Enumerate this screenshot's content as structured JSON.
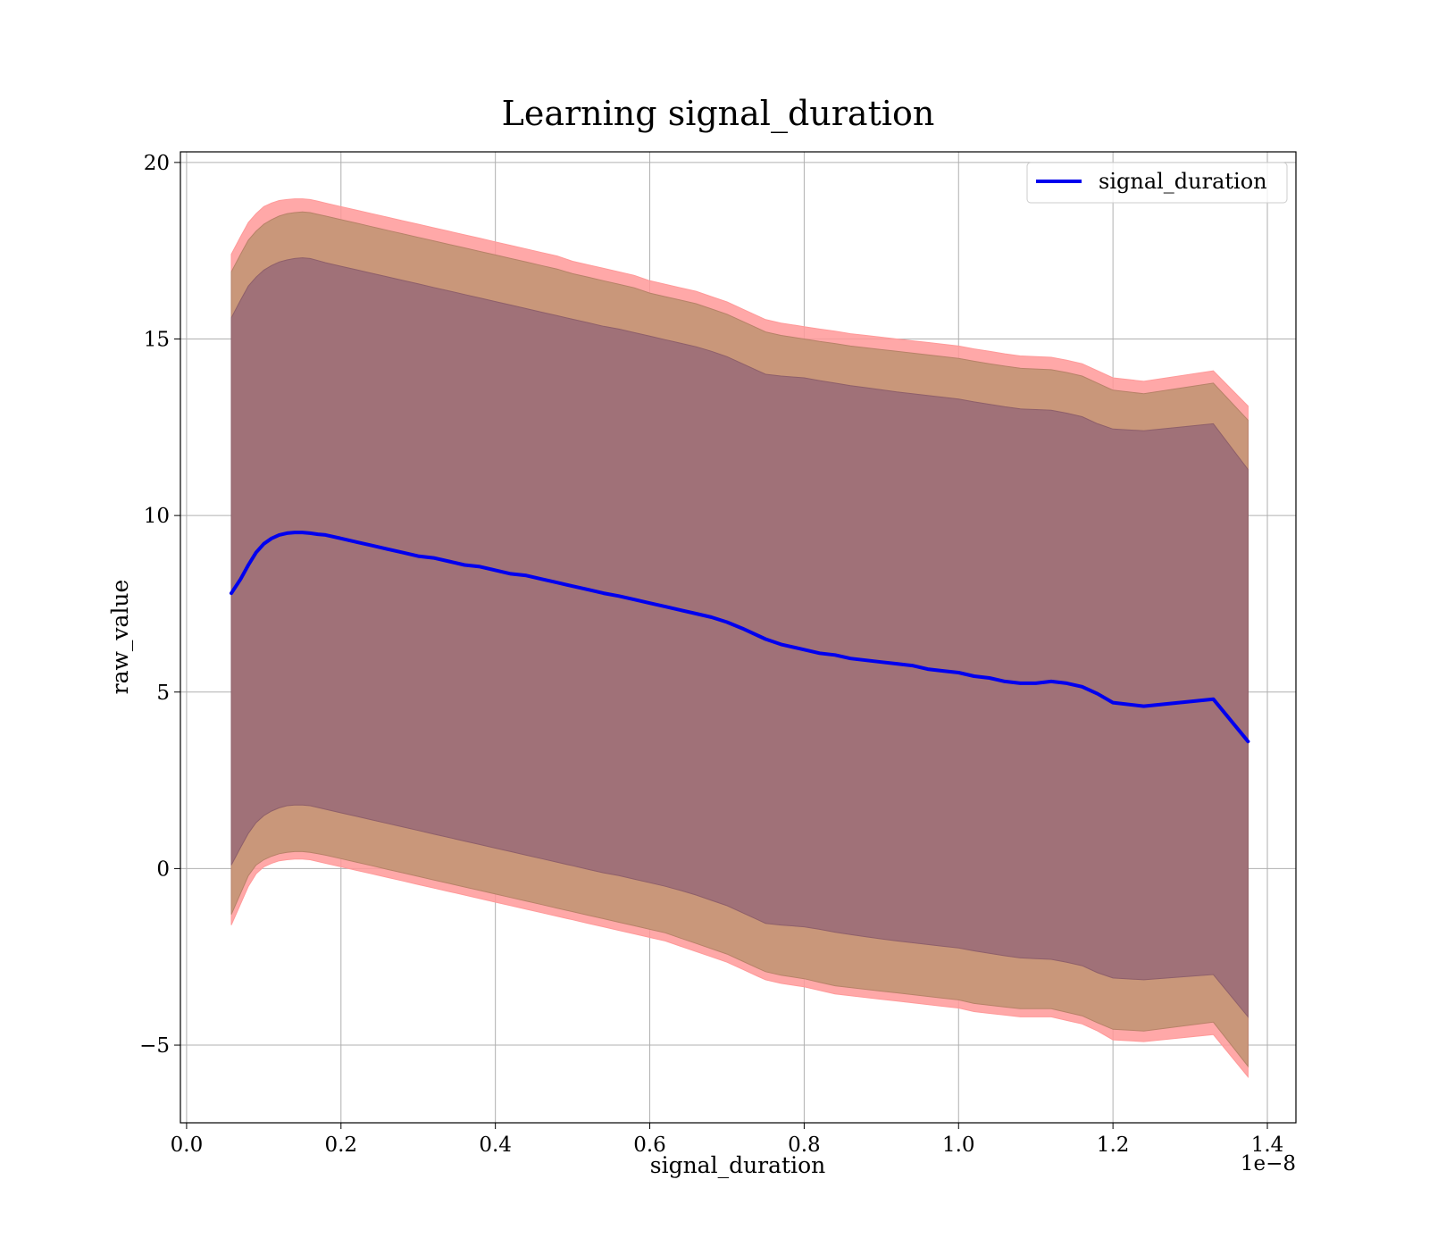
{
  "chart_data": {
    "type": "line",
    "title": "Learning signal_duration",
    "xlabel": "signal_duration",
    "ylabel": "raw_value",
    "x_offset_label": "1e−8",
    "xlim": [
      -0.008,
      1.437
    ],
    "ylim": [
      -7.2,
      20.3
    ],
    "x_ticks": [
      0.0,
      0.2,
      0.4,
      0.6,
      0.8,
      1.0,
      1.2,
      1.4
    ],
    "x_tick_labels": [
      "0.0",
      "0.2",
      "0.4",
      "0.6",
      "0.8",
      "1.0",
      "1.2",
      "1.4"
    ],
    "y_ticks": [
      -5,
      0,
      5,
      10,
      15,
      20
    ],
    "y_tick_labels": [
      "−5",
      "0",
      "5",
      "10",
      "15",
      "20"
    ],
    "grid": true,
    "legend_position": "top-right",
    "colors": {
      "line": "#0000ee",
      "band_outer": "#ff9999",
      "band_middle": "#c9977a",
      "band_inner": "#a07178"
    },
    "series": [
      {
        "name": "signal_duration",
        "x": [
          0.058,
          0.07,
          0.08,
          0.09,
          0.1,
          0.11,
          0.12,
          0.13,
          0.14,
          0.15,
          0.16,
          0.17,
          0.18,
          0.2,
          0.22,
          0.24,
          0.26,
          0.28,
          0.3,
          0.32,
          0.34,
          0.36,
          0.38,
          0.4,
          0.42,
          0.44,
          0.46,
          0.48,
          0.5,
          0.52,
          0.54,
          0.56,
          0.58,
          0.6,
          0.62,
          0.64,
          0.66,
          0.68,
          0.7,
          0.72,
          0.74,
          0.75,
          0.77,
          0.8,
          0.82,
          0.84,
          0.86,
          0.88,
          0.9,
          0.92,
          0.94,
          0.96,
          0.98,
          1.0,
          1.02,
          1.04,
          1.06,
          1.08,
          1.1,
          1.12,
          1.14,
          1.16,
          1.18,
          1.2,
          1.24,
          1.33,
          1.375
        ],
        "y": [
          7.8,
          8.2,
          8.6,
          8.95,
          9.2,
          9.35,
          9.45,
          9.5,
          9.52,
          9.52,
          9.5,
          9.47,
          9.45,
          9.35,
          9.25,
          9.15,
          9.05,
          8.95,
          8.85,
          8.8,
          8.7,
          8.6,
          8.55,
          8.45,
          8.35,
          8.3,
          8.2,
          8.1,
          8.0,
          7.9,
          7.8,
          7.72,
          7.62,
          7.52,
          7.42,
          7.32,
          7.22,
          7.12,
          6.98,
          6.8,
          6.6,
          6.5,
          6.35,
          6.2,
          6.1,
          6.05,
          5.95,
          5.9,
          5.85,
          5.8,
          5.75,
          5.65,
          5.6,
          5.55,
          5.45,
          5.4,
          5.3,
          5.25,
          5.25,
          5.3,
          5.25,
          5.15,
          4.95,
          4.7,
          4.6,
          4.8,
          3.6
        ],
        "band_outer": {
          "upper": [
            17.4,
            17.9,
            18.3,
            18.55,
            18.75,
            18.85,
            18.92,
            18.95,
            18.97,
            18.97,
            18.95,
            18.9,
            18.85,
            18.75,
            18.65,
            18.55,
            18.45,
            18.35,
            18.25,
            18.15,
            18.05,
            17.95,
            17.85,
            17.75,
            17.65,
            17.55,
            17.45,
            17.35,
            17.2,
            17.1,
            17.0,
            16.9,
            16.8,
            16.65,
            16.55,
            16.45,
            16.35,
            16.2,
            16.05,
            15.85,
            15.65,
            15.55,
            15.45,
            15.35,
            15.28,
            15.22,
            15.15,
            15.1,
            15.05,
            15.0,
            14.95,
            14.9,
            14.85,
            14.8,
            14.72,
            14.65,
            14.58,
            14.52,
            14.5,
            14.48,
            14.4,
            14.3,
            14.1,
            13.9,
            13.8,
            14.1,
            13.1
          ],
          "lower": [
            -1.6,
            -1.0,
            -0.5,
            -0.15,
            0.05,
            0.15,
            0.22,
            0.25,
            0.27,
            0.27,
            0.25,
            0.2,
            0.15,
            0.05,
            -0.05,
            -0.15,
            -0.25,
            -0.35,
            -0.45,
            -0.55,
            -0.65,
            -0.75,
            -0.85,
            -0.95,
            -1.05,
            -1.15,
            -1.25,
            -1.35,
            -1.45,
            -1.55,
            -1.65,
            -1.75,
            -1.85,
            -1.95,
            -2.05,
            -2.2,
            -2.35,
            -2.5,
            -2.65,
            -2.85,
            -3.05,
            -3.15,
            -3.25,
            -3.35,
            -3.45,
            -3.55,
            -3.6,
            -3.65,
            -3.7,
            -3.75,
            -3.8,
            -3.85,
            -3.9,
            -3.95,
            -4.05,
            -4.1,
            -4.15,
            -4.2,
            -4.2,
            -4.2,
            -4.3,
            -4.4,
            -4.6,
            -4.85,
            -4.9,
            -4.7,
            -5.9
          ]
        },
        "band_middle": {
          "upper": [
            16.9,
            17.4,
            17.8,
            18.05,
            18.25,
            18.38,
            18.48,
            18.55,
            18.58,
            18.6,
            18.58,
            18.53,
            18.48,
            18.38,
            18.28,
            18.18,
            18.08,
            17.98,
            17.88,
            17.78,
            17.68,
            17.58,
            17.48,
            17.38,
            17.28,
            17.18,
            17.08,
            16.98,
            16.85,
            16.75,
            16.65,
            16.55,
            16.45,
            16.3,
            16.2,
            16.1,
            16.0,
            15.85,
            15.7,
            15.5,
            15.3,
            15.2,
            15.1,
            15.0,
            14.93,
            14.87,
            14.8,
            14.75,
            14.7,
            14.65,
            14.6,
            14.55,
            14.5,
            14.45,
            14.37,
            14.3,
            14.23,
            14.17,
            14.15,
            14.13,
            14.05,
            13.95,
            13.75,
            13.55,
            13.45,
            13.75,
            12.7
          ],
          "lower": [
            -1.3,
            -0.7,
            -0.2,
            0.1,
            0.25,
            0.35,
            0.42,
            0.46,
            0.48,
            0.48,
            0.46,
            0.42,
            0.38,
            0.28,
            0.18,
            0.08,
            -0.02,
            -0.12,
            -0.22,
            -0.32,
            -0.42,
            -0.52,
            -0.62,
            -0.72,
            -0.82,
            -0.92,
            -1.02,
            -1.12,
            -1.22,
            -1.32,
            -1.42,
            -1.52,
            -1.62,
            -1.72,
            -1.82,
            -1.97,
            -2.12,
            -2.27,
            -2.42,
            -2.62,
            -2.82,
            -2.92,
            -3.02,
            -3.12,
            -3.22,
            -3.32,
            -3.37,
            -3.42,
            -3.47,
            -3.52,
            -3.57,
            -3.62,
            -3.67,
            -3.72,
            -3.82,
            -3.87,
            -3.92,
            -3.97,
            -3.97,
            -3.97,
            -4.07,
            -4.17,
            -4.37,
            -4.55,
            -4.6,
            -4.35,
            -5.6
          ]
        },
        "band_inner": {
          "upper": [
            15.6,
            16.1,
            16.5,
            16.75,
            16.95,
            17.08,
            17.18,
            17.24,
            17.28,
            17.3,
            17.28,
            17.22,
            17.16,
            17.06,
            16.96,
            16.86,
            16.76,
            16.66,
            16.56,
            16.46,
            16.36,
            16.26,
            16.16,
            16.06,
            15.96,
            15.86,
            15.76,
            15.66,
            15.56,
            15.46,
            15.36,
            15.28,
            15.18,
            15.08,
            14.98,
            14.88,
            14.78,
            14.65,
            14.5,
            14.3,
            14.1,
            14.0,
            13.95,
            13.9,
            13.82,
            13.75,
            13.68,
            13.62,
            13.56,
            13.5,
            13.45,
            13.4,
            13.35,
            13.3,
            13.22,
            13.15,
            13.08,
            13.02,
            13.0,
            12.98,
            12.9,
            12.8,
            12.6,
            12.45,
            12.4,
            12.6,
            11.3
          ],
          "lower": [
            0.1,
            0.6,
            1.0,
            1.3,
            1.5,
            1.63,
            1.72,
            1.78,
            1.8,
            1.8,
            1.78,
            1.73,
            1.68,
            1.58,
            1.48,
            1.38,
            1.28,
            1.18,
            1.08,
            0.98,
            0.88,
            0.78,
            0.68,
            0.58,
            0.48,
            0.38,
            0.28,
            0.18,
            0.08,
            -0.02,
            -0.12,
            -0.2,
            -0.3,
            -0.4,
            -0.5,
            -0.62,
            -0.75,
            -0.9,
            -1.05,
            -1.25,
            -1.45,
            -1.55,
            -1.6,
            -1.65,
            -1.72,
            -1.8,
            -1.87,
            -1.93,
            -1.99,
            -2.05,
            -2.1,
            -2.15,
            -2.2,
            -2.25,
            -2.33,
            -2.4,
            -2.47,
            -2.53,
            -2.55,
            -2.57,
            -2.65,
            -2.75,
            -2.95,
            -3.1,
            -3.15,
            -3.0,
            -4.2
          ]
        }
      }
    ]
  }
}
